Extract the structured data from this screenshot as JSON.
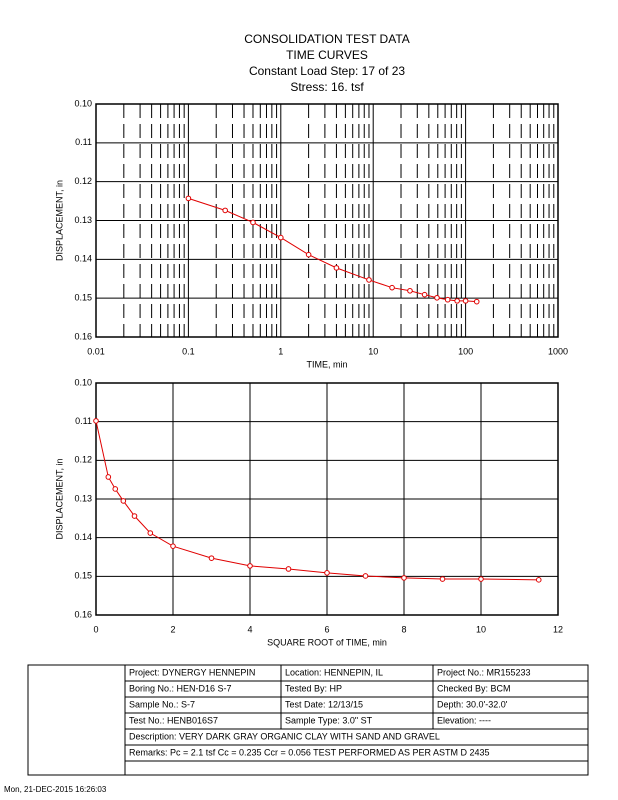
{
  "header": {
    "title": "CONSOLIDATION TEST DATA",
    "subtitle": "TIME CURVES",
    "load_step": "Constant Load Step: 17 of 23",
    "stress": "Stress: 16. tsf"
  },
  "chart_data": [
    {
      "type": "line",
      "x_label": "TIME, min",
      "y_label": "DISPLACEMENT, in",
      "xscale": "log",
      "minor_grid": true,
      "grid": true,
      "color": "#e00000",
      "x": [
        0.1,
        0.25,
        0.5,
        1,
        2,
        4,
        9,
        16,
        25,
        36,
        49,
        64,
        81,
        100,
        132
      ],
      "values": [
        0.1243,
        0.1274,
        0.1305,
        0.1344,
        0.1388,
        0.1422,
        0.1453,
        0.1473,
        0.1481,
        0.1491,
        0.1499,
        0.1504,
        0.1507,
        0.1507,
        0.1509
      ],
      "xlim": [
        0.01,
        1000
      ],
      "xticks": [
        0.01,
        0.1,
        1,
        10,
        100,
        1000
      ],
      "ylim": [
        0.16,
        0.1
      ],
      "yticks": [
        {
          "value": 0.1,
          "label": "0.10"
        },
        {
          "value": 0.11,
          "label": "0.11"
        },
        {
          "value": 0.12,
          "label": "0.12"
        },
        {
          "value": 0.13,
          "label": "0.13"
        },
        {
          "value": 0.14,
          "label": "0.14"
        },
        {
          "value": 0.15,
          "label": "0.15"
        },
        {
          "value": 0.16,
          "label": "0.16"
        }
      ]
    },
    {
      "type": "line",
      "x_label": "SQUARE ROOT of TIME, min",
      "y_label": "DISPLACEMENT, in",
      "xscale": "linear",
      "minor_grid": false,
      "grid": true,
      "color": "#e00000",
      "x": [
        0,
        0.32,
        0.5,
        0.71,
        1,
        1.41,
        2,
        3,
        4,
        5,
        6,
        7,
        8,
        9,
        10,
        11.5
      ],
      "values": [
        0.1098,
        0.1243,
        0.1274,
        0.1305,
        0.1344,
        0.1388,
        0.1422,
        0.1453,
        0.1473,
        0.1481,
        0.1491,
        0.1499,
        0.1504,
        0.1507,
        0.1507,
        0.1509
      ],
      "xlim": [
        0,
        12
      ],
      "xticks": [
        0,
        2,
        4,
        6,
        8,
        10,
        12
      ],
      "ylim": [
        0.16,
        0.1
      ],
      "yticks": [
        {
          "value": 0.1,
          "label": "0.10"
        },
        {
          "value": 0.11,
          "label": "0.11"
        },
        {
          "value": 0.12,
          "label": "0.12"
        },
        {
          "value": 0.13,
          "label": "0.13"
        },
        {
          "value": 0.14,
          "label": "0.14"
        },
        {
          "value": 0.15,
          "label": "0.15"
        },
        {
          "value": 0.16,
          "label": "0.16"
        }
      ]
    }
  ],
  "table": {
    "rows": [
      [
        "Project: DYNERGY HENNEPIN",
        "Location: HENNEPIN, IL",
        "Project No.: MR155233"
      ],
      [
        "Boring No.: HEN-D16 S-7",
        "Tested By: HP",
        "Checked By: BCM"
      ],
      [
        "Sample No.: S-7",
        "Test Date: 12/13/15",
        "Depth: 30.0'-32.0'"
      ],
      [
        "Test No.: HENB016S7",
        "Sample Type: 3.0\" ST",
        "Elevation: ----"
      ],
      [
        "Description: VERY DARK GRAY ORGANIC CLAY WITH SAND AND GRAVEL"
      ],
      [
        "Remarks: Pc = 2.1 tsf Cc = 0.235 Ccr = 0.056 TEST PERFORMED AS PER ASTM D 2435"
      ]
    ]
  },
  "footer": "Mon, 21-DEC-2015 16:26:03"
}
